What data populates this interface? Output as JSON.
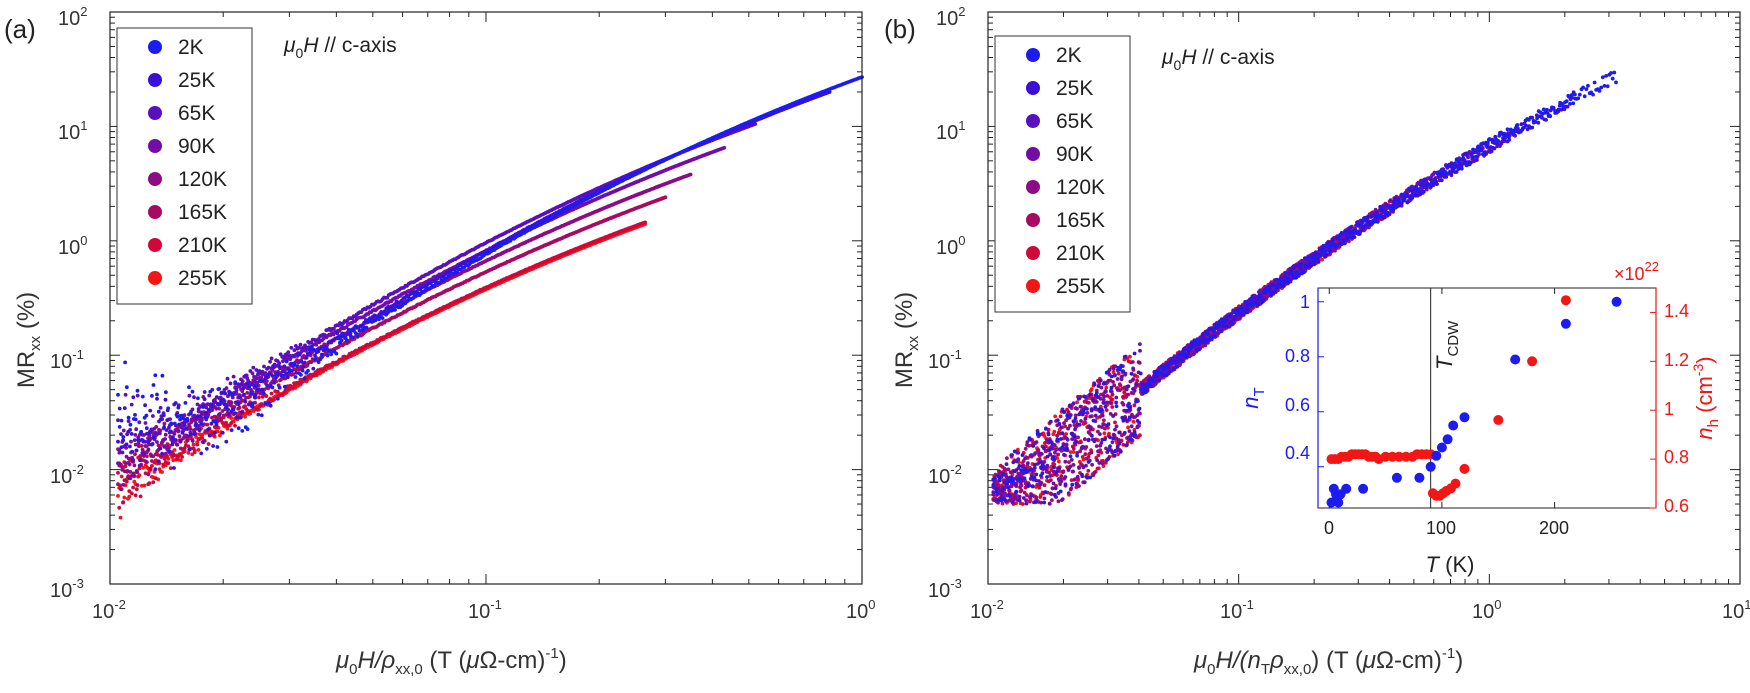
{
  "chart_data": [
    {
      "type": "scatter",
      "panel_label": "(a)",
      "annotation": {
        "mu": "μ",
        "sub": "0",
        "H": "H",
        "rest": " // c-axis"
      },
      "xscale": "log",
      "yscale": "log",
      "xlim": [
        0.01,
        1
      ],
      "ylim": [
        0.001,
        100
      ],
      "x_ticks": [
        {
          "base": "10",
          "exp": "-2"
        },
        {
          "base": "10",
          "exp": "-1"
        },
        {
          "base": "10",
          "exp": "0"
        }
      ],
      "y_ticks": [
        {
          "base": "10",
          "exp": "-3"
        },
        {
          "base": "10",
          "exp": "-2"
        },
        {
          "base": "10",
          "exp": "-1"
        },
        {
          "base": "10",
          "exp": "0"
        },
        {
          "base": "10",
          "exp": "1"
        },
        {
          "base": "10",
          "exp": "2"
        }
      ],
      "xlabel": {
        "mu": "μ",
        "sub0": "0",
        "H": "H/",
        "rho": "ρ",
        "rhosub": "xx,0",
        "units": " (T (",
        "unitmu": "μ",
        "ohm": "Ω-cm)",
        "exp": "-1",
        "close": ")"
      },
      "ylabel": {
        "main": "MR",
        "sub": "xx",
        "rest": " (%)"
      },
      "legend_location": "top-left",
      "series": [
        {
          "name": "2K",
          "color": "#1c1cf0",
          "x_start": 0.0105,
          "x_end": 1.0,
          "y_end": 27.0,
          "noise_floor": 0.07
        },
        {
          "name": "25K",
          "color": "#3a10d8",
          "x_start": 0.0105,
          "x_end": 0.82,
          "y_end": 20.0,
          "noise_floor": 0.05
        },
        {
          "name": "65K",
          "color": "#5a0fbf",
          "x_start": 0.0105,
          "x_end": 0.52,
          "y_end": 10.5,
          "noise_floor": 0.04
        },
        {
          "name": "90K",
          "color": "#720ea6",
          "x_start": 0.0105,
          "x_end": 0.43,
          "y_end": 6.5,
          "noise_floor": 0.03
        },
        {
          "name": "120K",
          "color": "#8c0c86",
          "x_start": 0.0105,
          "x_end": 0.35,
          "y_end": 3.8,
          "noise_floor": 0.025
        },
        {
          "name": "165K",
          "color": "#a80a62",
          "x_start": 0.0105,
          "x_end": 0.3,
          "y_end": 2.4,
          "noise_floor": 0.02
        },
        {
          "name": "210K",
          "color": "#d0083a",
          "x_start": 0.0105,
          "x_end": 0.265,
          "y_end": 1.45,
          "noise_floor": 0.015
        },
        {
          "name": "255K",
          "color": "#f41515",
          "x_start": 0.0105,
          "x_end": 0.265,
          "y_end": 1.4,
          "noise_floor": 0.01
        }
      ]
    },
    {
      "type": "scatter",
      "panel_label": "(b)",
      "annotation": {
        "mu": "μ",
        "sub": "0",
        "H": "H",
        "rest": " // c-axis"
      },
      "xscale": "log",
      "yscale": "log",
      "xlim": [
        0.01,
        10
      ],
      "ylim": [
        0.001,
        100
      ],
      "x_ticks": [
        {
          "base": "10",
          "exp": "-2"
        },
        {
          "base": "10",
          "exp": "-1"
        },
        {
          "base": "10",
          "exp": "0"
        },
        {
          "base": "10",
          "exp": "1"
        }
      ],
      "y_ticks": [
        {
          "base": "10",
          "exp": "-3"
        },
        {
          "base": "10",
          "exp": "-2"
        },
        {
          "base": "10",
          "exp": "-1"
        },
        {
          "base": "10",
          "exp": "0"
        },
        {
          "base": "10",
          "exp": "1"
        },
        {
          "base": "10",
          "exp": "2"
        }
      ],
      "xlabel": {
        "mu": "μ",
        "sub0": "0",
        "H": "H/(",
        "n": "n",
        "nsub": "T",
        "rho": "ρ",
        "rhosub": "xx,0",
        "units": ") (T (",
        "unitmu": "μ",
        "ohm": "Ω-cm)",
        "exp": "-1",
        "close": ")"
      },
      "ylabel": {
        "main": "MR",
        "sub": "xx",
        "rest": " (%)"
      },
      "legend_location": "top-left",
      "collapsed_curve": {
        "x_end": 3.2,
        "y_end": 27.0
      },
      "series": [
        {
          "name": "2K",
          "color": "#1c1cf0",
          "x_end": 3.2
        },
        {
          "name": "25K",
          "color": "#3a10d8",
          "x_end": 2.2
        },
        {
          "name": "65K",
          "color": "#5a0fbf",
          "x_end": 1.3
        },
        {
          "name": "90K",
          "color": "#720ea6",
          "x_end": 1.0
        },
        {
          "name": "120K",
          "color": "#8c0c86",
          "x_end": 0.6
        },
        {
          "name": "165K",
          "color": "#a80a62",
          "x_end": 0.4
        },
        {
          "name": "210K",
          "color": "#d0083a",
          "x_end": 0.26
        },
        {
          "name": "255K",
          "color": "#f41515",
          "x_end": 0.25
        }
      ],
      "inset": {
        "type": "scatter",
        "xlim": [
          -10,
          290
        ],
        "x_ticks": [
          "0",
          "100",
          "200"
        ],
        "xlabel": {
          "T": "T",
          "rest": " (K)"
        },
        "left_axis": {
          "label": {
            "n": "n",
            "sub": "T"
          },
          "color": "#1c1cf0",
          "ylim": [
            0.25,
            1.05
          ],
          "ticks": [
            "0.4",
            "0.6",
            "0.8",
            "1"
          ],
          "points": [
            [
              2,
              0.27
            ],
            [
              4,
              0.32
            ],
            [
              6,
              0.3
            ],
            [
              8,
              0.27
            ],
            [
              10,
              0.3
            ],
            [
              15,
              0.32
            ],
            [
              30,
              0.32
            ],
            [
              60,
              0.36
            ],
            [
              80,
              0.36
            ],
            [
              90,
              0.4
            ],
            [
              95,
              0.44
            ],
            [
              100,
              0.47
            ],
            [
              105,
              0.5
            ],
            [
              110,
              0.55
            ],
            [
              120,
              0.58
            ],
            [
              165,
              0.79
            ],
            [
              210,
              0.92
            ],
            [
              255,
              1.0
            ]
          ]
        },
        "right_axis": {
          "label": {
            "n": "n",
            "sub": "h",
            "units": " (cm",
            "exp": "-3",
            "close": ")"
          },
          "multiplier": {
            "times": "×10",
            "exp": "22"
          },
          "color": "#f41515",
          "ylim": [
            0.6,
            1.5
          ],
          "ticks": [
            "0.6",
            "0.8",
            "1",
            "1.2",
            "1.4"
          ],
          "points": [
            [
              2,
              0.8
            ],
            [
              5,
              0.8
            ],
            [
              8,
              0.8
            ],
            [
              11,
              0.81
            ],
            [
              14,
              0.81
            ],
            [
              17,
              0.81
            ],
            [
              20,
              0.82
            ],
            [
              23,
              0.82
            ],
            [
              26,
              0.82
            ],
            [
              29,
              0.82
            ],
            [
              32,
              0.82
            ],
            [
              35,
              0.81
            ],
            [
              38,
              0.81
            ],
            [
              41,
              0.81
            ],
            [
              44,
              0.8
            ],
            [
              50,
              0.81
            ],
            [
              56,
              0.81
            ],
            [
              62,
              0.81
            ],
            [
              68,
              0.81
            ],
            [
              74,
              0.81
            ],
            [
              78,
              0.82
            ],
            [
              82,
              0.82
            ],
            [
              86,
              0.82
            ],
            [
              90,
              0.82
            ],
            [
              92,
              0.66
            ],
            [
              95,
              0.65
            ],
            [
              98,
              0.65
            ],
            [
              101,
              0.66
            ],
            [
              104,
              0.67
            ],
            [
              108,
              0.68
            ],
            [
              112,
              0.7
            ],
            [
              120,
              0.76
            ],
            [
              150,
              0.96
            ],
            [
              180,
              1.2
            ],
            [
              210,
              1.45
            ]
          ]
        },
        "vline_x": 90,
        "vline_label": {
          "T": "T",
          "sub": "CDW"
        }
      }
    }
  ]
}
